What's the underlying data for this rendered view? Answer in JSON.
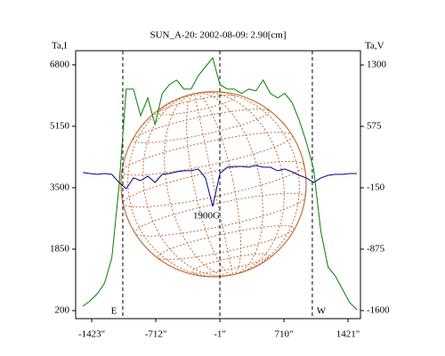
{
  "chart_data": {
    "type": "line",
    "title": "SUN_A-20: 2002-08-09: 2.90[cm]",
    "y_label": "Ta,I",
    "y2_label": "Ta,V",
    "x": [
      -1520,
      -1440,
      -1360,
      -1280,
      -1200,
      -1120,
      -1040,
      -960,
      -880,
      -800,
      -720,
      -640,
      -560,
      -480,
      -400,
      -320,
      -240,
      -160,
      -80,
      0,
      80,
      160,
      240,
      320,
      400,
      480,
      560,
      640,
      720,
      800,
      880,
      960,
      1040,
      1120,
      1200,
      1280,
      1360,
      1440,
      1520
    ],
    "series": [
      {
        "name": "Ta,I",
        "color": "#008000",
        "values": [
          320,
          463,
          654,
          941,
          1610,
          3522,
          6151,
          6151,
          5434,
          5912,
          5195,
          6032,
          6271,
          6390,
          6151,
          6151,
          6510,
          6749,
          6988,
          6271,
          6151,
          6151,
          6032,
          6151,
          6103,
          6390,
          6032,
          5912,
          6032,
          5793,
          5315,
          4717,
          4000,
          2327,
          1371,
          1132,
          774,
          415,
          224
        ]
      },
      {
        "name": "Ta,V",
        "color": "#00008b",
        "axis": "y2",
        "values": [
          29,
          18,
          8,
          18,
          8,
          -87,
          -161,
          -34,
          -66,
          -13,
          -87,
          8,
          18,
          39,
          50,
          50,
          71,
          -34,
          -371,
          18,
          92,
          102,
          102,
          92,
          113,
          92,
          92,
          50,
          71,
          39,
          -3,
          -34,
          -87,
          -34,
          -3,
          8,
          8,
          18,
          18
        ]
      }
    ],
    "xlim": [
      -1601,
      1559
    ],
    "xticks": [
      {
        "value": -1423,
        "label": "-1423\""
      },
      {
        "value": -712,
        "label": "-712\""
      },
      {
        "value": -1,
        "label": "-1\""
      },
      {
        "value": 710,
        "label": "710\""
      },
      {
        "value": 1421,
        "label": "1421\""
      }
    ],
    "ylim": [
      -15,
      7180
    ],
    "yticks": [
      200,
      1850,
      3500,
      5150,
      6800
    ],
    "y2lim": [
      -1695,
      1468
    ],
    "y2ticks": [
      -1600,
      -875,
      -150,
      575,
      1300
    ],
    "vlines": [
      -1078,
      -1,
      1025
    ],
    "annotations": [
      {
        "text": "E",
        "x": -1078
      },
      {
        "text": "W",
        "x": 1025
      },
      {
        "text": "1900G",
        "x": -71
      }
    ]
  }
}
